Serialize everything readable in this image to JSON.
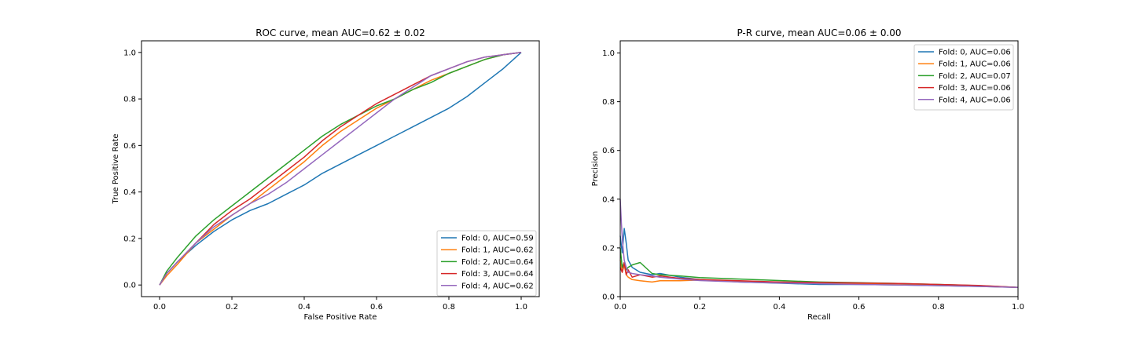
{
  "chart_data": [
    {
      "type": "line",
      "title": "ROC curve, mean AUC=0.62 ± 0.02",
      "xlabel": "False Positive Rate",
      "ylabel": "True Positive Rate",
      "xlim": [
        -0.05,
        1.05
      ],
      "ylim": [
        -0.05,
        1.05
      ],
      "xticks": [
        "0.0",
        "0.2",
        "0.4",
        "0.6",
        "0.8",
        "1.0"
      ],
      "yticks": [
        "0.0",
        "0.2",
        "0.4",
        "0.6",
        "0.8",
        "1.0"
      ],
      "grid": false,
      "legend_position": "bottom-right",
      "series": [
        {
          "name": "Fold: 0, AUC=0.59",
          "color": "#1f77b4",
          "x": [
            0,
            0.02,
            0.05,
            0.1,
            0.15,
            0.2,
            0.25,
            0.3,
            0.35,
            0.4,
            0.45,
            0.5,
            0.55,
            0.6,
            0.65,
            0.7,
            0.75,
            0.8,
            0.85,
            0.9,
            0.95,
            1.0
          ],
          "y": [
            0,
            0.05,
            0.1,
            0.17,
            0.23,
            0.28,
            0.32,
            0.35,
            0.39,
            0.43,
            0.48,
            0.52,
            0.56,
            0.6,
            0.64,
            0.68,
            0.72,
            0.76,
            0.81,
            0.87,
            0.93,
            1.0
          ]
        },
        {
          "name": "Fold: 1, AUC=0.62",
          "color": "#ff7f0e",
          "x": [
            0,
            0.02,
            0.05,
            0.1,
            0.15,
            0.2,
            0.25,
            0.3,
            0.35,
            0.4,
            0.45,
            0.5,
            0.55,
            0.6,
            0.65,
            0.7,
            0.75,
            0.8,
            0.85,
            0.9,
            0.95,
            1.0
          ],
          "y": [
            0,
            0.04,
            0.09,
            0.18,
            0.24,
            0.3,
            0.35,
            0.41,
            0.47,
            0.53,
            0.6,
            0.66,
            0.71,
            0.76,
            0.8,
            0.84,
            0.88,
            0.91,
            0.94,
            0.97,
            0.99,
            1.0
          ]
        },
        {
          "name": "Fold: 2, AUC=0.64",
          "color": "#2ca02c",
          "x": [
            0,
            0.02,
            0.05,
            0.1,
            0.15,
            0.2,
            0.25,
            0.3,
            0.35,
            0.4,
            0.45,
            0.5,
            0.55,
            0.6,
            0.65,
            0.7,
            0.75,
            0.8,
            0.85,
            0.9,
            0.95,
            1.0
          ],
          "y": [
            0,
            0.06,
            0.12,
            0.21,
            0.28,
            0.34,
            0.4,
            0.46,
            0.52,
            0.58,
            0.64,
            0.69,
            0.73,
            0.77,
            0.8,
            0.84,
            0.87,
            0.91,
            0.94,
            0.97,
            0.99,
            1.0
          ]
        },
        {
          "name": "Fold: 3, AUC=0.64",
          "color": "#d62728",
          "x": [
            0,
            0.02,
            0.05,
            0.1,
            0.15,
            0.2,
            0.25,
            0.3,
            0.35,
            0.4,
            0.45,
            0.5,
            0.55,
            0.6,
            0.65,
            0.7,
            0.75,
            0.8,
            0.85,
            0.9,
            0.95,
            1.0
          ],
          "y": [
            0,
            0.05,
            0.1,
            0.18,
            0.26,
            0.32,
            0.37,
            0.43,
            0.49,
            0.55,
            0.62,
            0.68,
            0.73,
            0.78,
            0.82,
            0.86,
            0.9,
            0.93,
            0.96,
            0.98,
            0.99,
            1.0
          ]
        },
        {
          "name": "Fold: 4, AUC=0.62",
          "color": "#9467bd",
          "x": [
            0,
            0.02,
            0.05,
            0.1,
            0.15,
            0.2,
            0.25,
            0.3,
            0.35,
            0.4,
            0.45,
            0.5,
            0.55,
            0.6,
            0.65,
            0.7,
            0.75,
            0.8,
            0.85,
            0.9,
            0.95,
            1.0
          ],
          "y": [
            0,
            0.05,
            0.1,
            0.18,
            0.25,
            0.3,
            0.35,
            0.39,
            0.44,
            0.5,
            0.56,
            0.62,
            0.68,
            0.74,
            0.8,
            0.85,
            0.9,
            0.93,
            0.96,
            0.98,
            0.99,
            1.0
          ]
        }
      ]
    },
    {
      "type": "line",
      "title": "P-R curve, mean AUC=0.06 ± 0.00",
      "xlabel": "Recall",
      "ylabel": "Precision",
      "xlim": [
        0.0,
        1.0
      ],
      "ylim": [
        0.0,
        1.05
      ],
      "xticks": [
        "0.0",
        "0.2",
        "0.4",
        "0.6",
        "0.8",
        "1.0"
      ],
      "yticks": [
        "0.0",
        "0.2",
        "0.4",
        "0.6",
        "0.8",
        "1.0"
      ],
      "grid": false,
      "legend_position": "top-right",
      "series": [
        {
          "name": "Fold: 0, AUC=0.06",
          "color": "#1f77b4",
          "x": [
            0,
            0.005,
            0.01,
            0.015,
            0.02,
            0.03,
            0.05,
            0.08,
            0.1,
            0.15,
            0.2,
            0.3,
            0.4,
            0.5,
            0.6,
            0.7,
            0.8,
            0.9,
            1.0
          ],
          "y": [
            0.25,
            0.18,
            0.28,
            0.22,
            0.15,
            0.12,
            0.1,
            0.09,
            0.095,
            0.08,
            0.07,
            0.06,
            0.055,
            0.05,
            0.05,
            0.048,
            0.045,
            0.042,
            0.038
          ]
        },
        {
          "name": "Fold: 1, AUC=0.06",
          "color": "#ff7f0e",
          "x": [
            0,
            0.005,
            0.01,
            0.015,
            0.02,
            0.03,
            0.05,
            0.08,
            0.1,
            0.15,
            0.2,
            0.3,
            0.4,
            0.5,
            0.6,
            0.7,
            0.8,
            0.9,
            1.0
          ],
          "y": [
            0.15,
            0.1,
            0.13,
            0.09,
            0.08,
            0.07,
            0.065,
            0.06,
            0.065,
            0.065,
            0.068,
            0.062,
            0.058,
            0.055,
            0.053,
            0.05,
            0.047,
            0.043,
            0.038
          ]
        },
        {
          "name": "Fold: 2, AUC=0.07",
          "color": "#2ca02c",
          "x": [
            0,
            0.005,
            0.01,
            0.015,
            0.02,
            0.03,
            0.05,
            0.08,
            0.1,
            0.15,
            0.2,
            0.3,
            0.4,
            0.5,
            0.6,
            0.7,
            0.8,
            0.9,
            1.0
          ],
          "y": [
            0.2,
            0.12,
            0.14,
            0.11,
            0.12,
            0.13,
            0.14,
            0.095,
            0.09,
            0.085,
            0.078,
            0.072,
            0.066,
            0.06,
            0.057,
            0.054,
            0.05,
            0.045,
            0.038
          ]
        },
        {
          "name": "Fold: 3, AUC=0.06",
          "color": "#d62728",
          "x": [
            0,
            0.005,
            0.01,
            0.015,
            0.02,
            0.03,
            0.05,
            0.08,
            0.1,
            0.15,
            0.2,
            0.3,
            0.4,
            0.5,
            0.6,
            0.7,
            0.8,
            0.9,
            1.0
          ],
          "y": [
            0.12,
            0.1,
            0.14,
            0.09,
            0.11,
            0.08,
            0.09,
            0.08,
            0.085,
            0.075,
            0.07,
            0.065,
            0.06,
            0.058,
            0.056,
            0.054,
            0.05,
            0.046,
            0.038
          ]
        },
        {
          "name": "Fold: 4, AUC=0.06",
          "color": "#9467bd",
          "x": [
            0,
            0.003,
            0.006,
            0.01,
            0.015,
            0.02,
            0.03,
            0.05,
            0.08,
            0.1,
            0.15,
            0.2,
            0.3,
            0.4,
            0.5,
            0.6,
            0.7,
            0.8,
            0.9,
            1.0
          ],
          "y": [
            0.4,
            0.3,
            0.22,
            0.15,
            0.12,
            0.1,
            0.095,
            0.09,
            0.085,
            0.08,
            0.072,
            0.066,
            0.06,
            0.056,
            0.053,
            0.05,
            0.048,
            0.045,
            0.042,
            0.038
          ]
        }
      ]
    }
  ]
}
